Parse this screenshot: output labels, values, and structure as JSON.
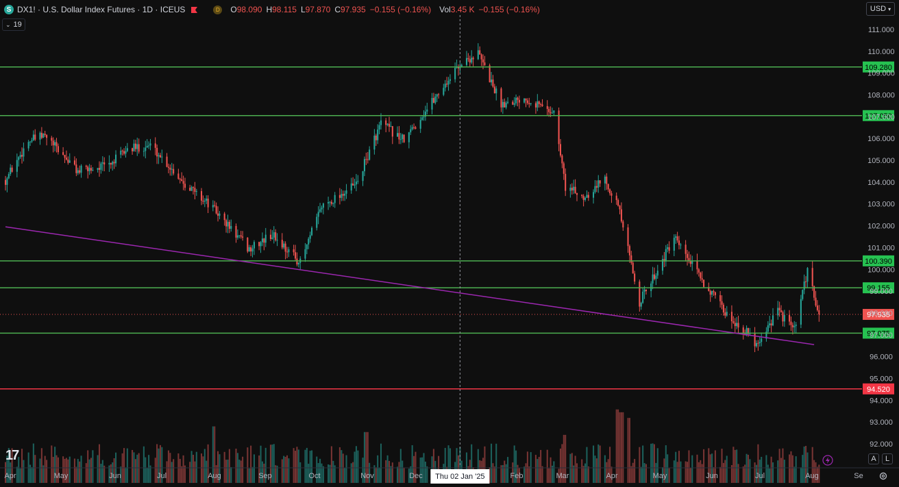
{
  "header": {
    "logo_letter": "S",
    "title": "DX1! · U.S. Dollar Index Futures · 1D · ICEUS",
    "delay_badge": "D",
    "open_label": "O",
    "open_value": "98.090",
    "high_label": "H",
    "high_value": "98.115",
    "low_label": "L",
    "low_value": "97.870",
    "close_label": "C",
    "close_value": "97.935",
    "change": "−0.155 (−0.16%)",
    "vol_label": "Vol",
    "vol_value": "3.45 K",
    "vol_change": "−0.155 (−0.16%)"
  },
  "indicator_toggle": {
    "count": "19"
  },
  "currency_button": "USD",
  "crosshair_date": "Thu 02 Jan '25",
  "ab_buttons": [
    "A",
    "L"
  ],
  "colors": {
    "background": "#0f0f0f",
    "up": "#26a69a",
    "down": "#ef5350",
    "level_line": "#4caf50",
    "level_label": "#26c251",
    "resistance_line": "#f23645",
    "trendline": "#9c27b0"
  },
  "chart_data": {
    "type": "candlestick",
    "x_axis_labels": [
      "Apr",
      "May",
      "Jun",
      "Jul",
      "Aug",
      "Sep",
      "Oct",
      "Nov",
      "Dec",
      "Feb",
      "Mar",
      "Apr",
      "May",
      "Jun",
      "Jul",
      "Aug",
      "Se"
    ],
    "y_axis_labels": [
      "111.000",
      "110.000",
      "109.000",
      "108.000",
      "107.000",
      "106.000",
      "105.000",
      "104.000",
      "103.000",
      "102.000",
      "101.000",
      "100.000",
      "99.000",
      "98.000",
      "97.000",
      "96.000",
      "95.000",
      "94.000",
      "93.000",
      "92.000"
    ],
    "y_range": [
      91.3,
      111.4
    ],
    "horizontal_levels": [
      {
        "value": 109.28,
        "label": "109.280",
        "kind": "support"
      },
      {
        "value": 107.05,
        "label": "107.050",
        "kind": "support"
      },
      {
        "value": 100.39,
        "label": "100.390",
        "kind": "support"
      },
      {
        "value": 99.155,
        "label": "99.155",
        "kind": "support"
      },
      {
        "value": 97.075,
        "label": "97.075",
        "kind": "support"
      },
      {
        "value": 94.52,
        "label": "94.520",
        "kind": "resistance"
      }
    ],
    "last_price": {
      "value": 97.935,
      "label": "97.935"
    },
    "trendline": {
      "start": [
        "2024-04-01",
        101.95
      ],
      "end": [
        "2025-08-05",
        96.55
      ]
    },
    "price_path": [
      [
        "2024-04-01",
        104.1
      ],
      [
        "2024-04-15",
        105.9
      ],
      [
        "2024-04-25",
        106.1
      ],
      [
        "2024-05-15",
        104.5
      ],
      [
        "2024-06-03",
        104.8
      ],
      [
        "2024-06-14",
        105.5
      ],
      [
        "2024-06-28",
        105.7
      ],
      [
        "2024-07-17",
        104.1
      ],
      [
        "2024-08-05",
        102.8
      ],
      [
        "2024-08-27",
        100.9
      ],
      [
        "2024-09-10",
        101.6
      ],
      [
        "2024-09-27",
        100.3
      ],
      [
        "2024-10-10",
        102.9
      ],
      [
        "2024-10-31",
        103.9
      ],
      [
        "2024-11-15",
        106.7
      ],
      [
        "2024-11-29",
        105.9
      ],
      [
        "2024-12-19",
        108.0
      ],
      [
        "2025-01-02",
        109.4
      ],
      [
        "2025-01-13",
        109.9
      ],
      [
        "2025-01-27",
        107.6
      ],
      [
        "2025-02-10",
        107.9
      ],
      [
        "2025-02-28",
        107.2
      ],
      [
        "2025-03-07",
        103.8
      ],
      [
        "2025-03-18",
        103.3
      ],
      [
        "2025-03-31",
        104.2
      ],
      [
        "2025-04-08",
        102.9
      ],
      [
        "2025-04-21",
        98.5
      ],
      [
        "2025-05-12",
        101.4
      ],
      [
        "2025-05-30",
        99.4
      ],
      [
        "2025-06-12",
        98.0
      ],
      [
        "2025-06-25",
        97.1
      ],
      [
        "2025-07-01",
        96.6
      ],
      [
        "2025-07-14",
        98.1
      ],
      [
        "2025-07-24",
        97.2
      ],
      [
        "2025-08-01",
        99.9
      ],
      [
        "2025-08-08",
        97.935
      ]
    ],
    "volume_spikes": [
      [
        "2024-08-05",
        1.0
      ],
      [
        "2024-11-06",
        0.9
      ],
      [
        "2025-03-07",
        0.85
      ],
      [
        "2025-04-07",
        1.3
      ],
      [
        "2025-04-10",
        1.25
      ],
      [
        "2025-04-14",
        1.15
      ]
    ]
  }
}
